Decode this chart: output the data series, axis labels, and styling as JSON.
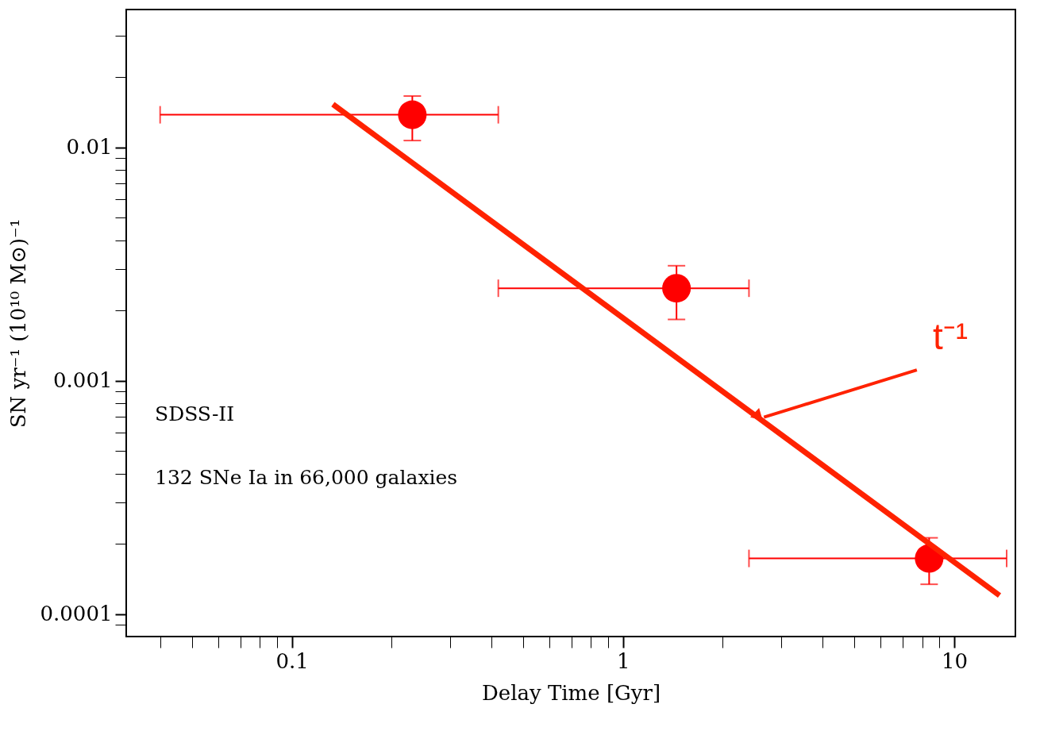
{
  "chart_data": {
    "type": "scatter",
    "xlabel": "Delay Time [Gyr]",
    "ylabel": "SN yr⁻¹ (10¹⁰ M⊙)⁻¹",
    "log": "xy",
    "grid": false,
    "xlim": [
      0.0316,
      15.3
    ],
    "ylim": [
      8e-05,
      0.039
    ],
    "xticks": [
      {
        "value": 0.04,
        "label": null
      },
      {
        "value": 0.05,
        "label": null
      },
      {
        "value": 0.06,
        "label": null
      },
      {
        "value": 0.07,
        "label": null
      },
      {
        "value": 0.08,
        "label": null
      },
      {
        "value": 0.09,
        "label": null
      },
      0.1,
      {
        "value": 0.2,
        "label": null
      },
      {
        "value": 0.3,
        "label": null
      },
      {
        "value": 0.4,
        "label": null
      },
      {
        "value": 0.5,
        "label": null
      },
      {
        "value": 0.6,
        "label": null
      },
      {
        "value": 0.7,
        "label": null
      },
      {
        "value": 0.8,
        "label": null
      },
      {
        "value": 0.9,
        "label": null
      },
      1,
      {
        "value": 2,
        "label": null
      },
      {
        "value": 3,
        "label": null
      },
      {
        "value": 4,
        "label": null
      },
      {
        "value": 5,
        "label": null
      },
      {
        "value": 6,
        "label": null
      },
      {
        "value": 7,
        "label": null
      },
      {
        "value": 8,
        "label": null
      },
      {
        "value": 9,
        "label": null
      },
      10
    ],
    "yticks": [
      {
        "value": 9e-05,
        "label": null
      },
      0.0001,
      {
        "value": 0.0002,
        "label": null
      },
      {
        "value": 0.0003,
        "label": null
      },
      {
        "value": 0.0004,
        "label": null
      },
      {
        "value": 0.0005,
        "label": null
      },
      {
        "value": 0.0006,
        "label": null
      },
      {
        "value": 0.0007,
        "label": null
      },
      {
        "value": 0.0008,
        "label": null
      },
      {
        "value": 0.0009,
        "label": null
      },
      0.001,
      {
        "value": 0.002,
        "label": null
      },
      {
        "value": 0.003,
        "label": null
      },
      {
        "value": 0.004,
        "label": null
      },
      {
        "value": 0.005,
        "label": null
      },
      {
        "value": 0.006,
        "label": null
      },
      {
        "value": 0.007,
        "label": null
      },
      {
        "value": 0.008,
        "label": null
      },
      {
        "value": 0.009,
        "label": null
      },
      0.01,
      {
        "value": 0.02,
        "label": null
      },
      {
        "value": 0.03,
        "label": null
      }
    ],
    "annotations": [
      "SDSS-II",
      "132 SNe Ia in 66,000 galaxies"
    ],
    "series": [
      {
        "color": "#ff0000",
        "marker": "circle",
        "x": [
          0.231,
          1.45,
          8.4
        ],
        "values": [
          0.0138,
          0.00249,
          0.000173
        ],
        "errors": [
          [
            0.0107,
            0.0166
          ],
          [
            0.00183,
            0.00311
          ],
          [
            0.000134,
            0.000212
          ]
        ],
        "xerrors": [
          [
            0.04,
            0.42
          ],
          [
            0.42,
            2.4
          ],
          [
            2.4,
            14.4
          ]
        ]
      },
      {
        "type": "line",
        "marker": "none",
        "name": "t⁻¹",
        "color": "#ff2200",
        "x": [
          0.133,
          13.7
        ],
        "values": [
          0.0153,
          0.00012
        ]
      }
    ]
  }
}
